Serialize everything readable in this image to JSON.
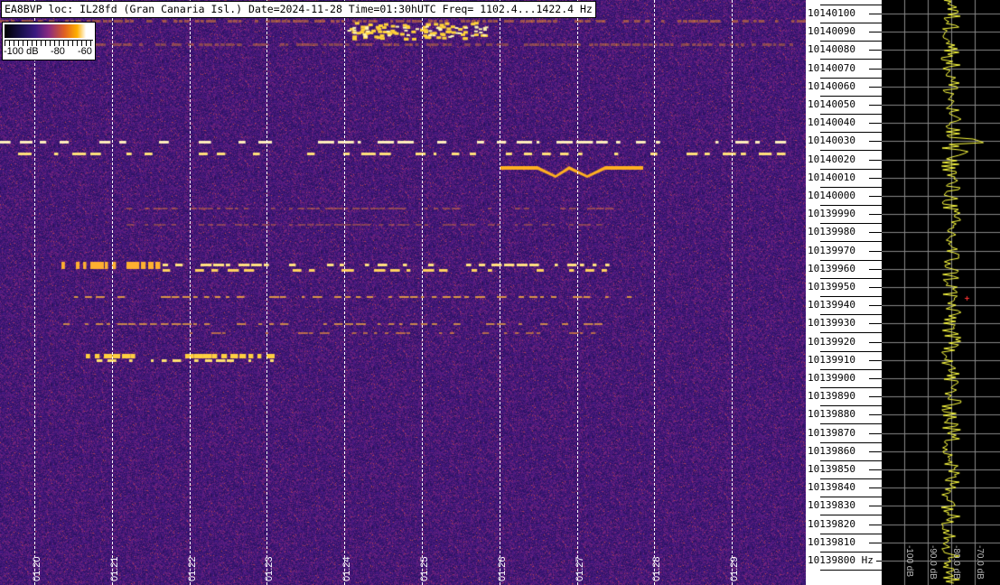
{
  "header": {
    "text": "EA8BVP loc: IL28fd (Gran Canaria Isl.) Date=2024-11-28 Time=01:30hUTC Freq= 1102.4...1422.4 Hz"
  },
  "colorbar": {
    "labels": [
      "-100 dB",
      "-80",
      "-60"
    ]
  },
  "chart_data": {
    "type": "heatmap",
    "title": "EA8BVP loc: IL28fd (Gran Canaria Isl.) Date=2024-11-28 Time=01:30hUTC Freq= 1102.4...1422.4 Hz",
    "x_ticks": [
      "01:20",
      "01:21",
      "01:22",
      "01:23",
      "01:24",
      "01:25",
      "01:26",
      "01:27",
      "01:28",
      "01:29"
    ],
    "y_ticks": [
      "10140100",
      "10140090",
      "10140080",
      "10140070",
      "10140060",
      "10140050",
      "10140040",
      "10140030",
      "10140020",
      "10140010",
      "10140000",
      "10139990",
      "10139980",
      "10139970",
      "10139960",
      "10139950",
      "10139940",
      "10139930",
      "10139920",
      "10139910",
      "10139900",
      "10139890",
      "10139880",
      "10139870",
      "10139860",
      "10139850",
      "10139840",
      "10139830",
      "10139820",
      "10139810",
      "10139800 Hz"
    ],
    "ylim": [
      10139800,
      10140100
    ],
    "colorscale_db": [
      -100,
      -60
    ],
    "grid": true,
    "spectrum_panel": {
      "x_ticks": [
        "-100 dB",
        "-90.0 dB",
        "-80.0 dB",
        "-70.0 dB"
      ],
      "line_color": "#ffff40"
    }
  }
}
